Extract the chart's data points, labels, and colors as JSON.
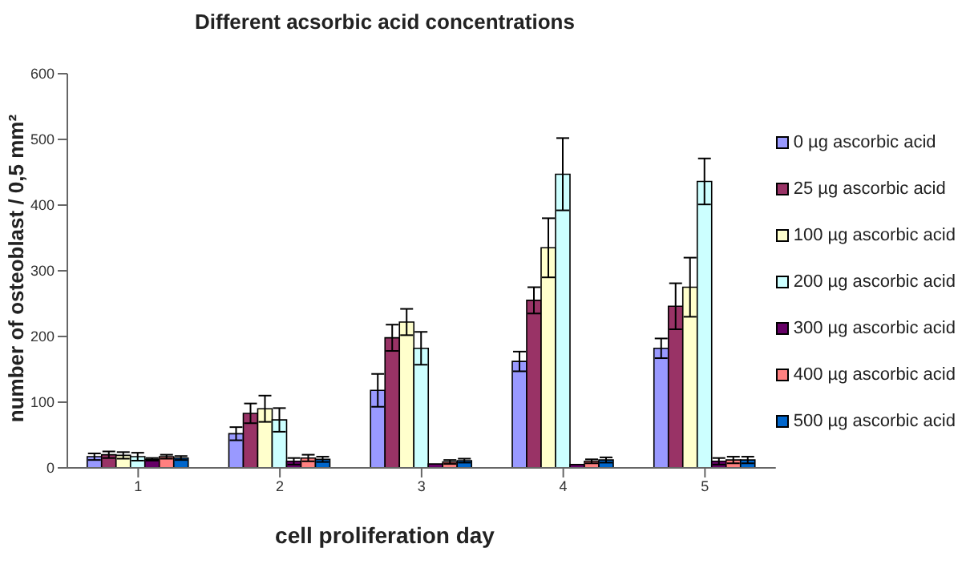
{
  "chart_data": {
    "type": "bar",
    "title": "Different acsorbic acid concentrations",
    "xlabel": "cell proliferation day",
    "ylabel": "number of osteoblast / 0,5 mm²",
    "categories": [
      "1",
      "2",
      "3",
      "4",
      "5"
    ],
    "series": [
      {
        "name": "0 µg ascorbic acid",
        "color": "#9999ff",
        "values": [
          17,
          52,
          118,
          162,
          182
        ],
        "errors": [
          5,
          10,
          25,
          15,
          15
        ]
      },
      {
        "name": "25 µg ascorbic acid",
        "color": "#993366",
        "values": [
          20,
          83,
          198,
          255,
          246
        ],
        "errors": [
          5,
          15,
          20,
          20,
          35
        ]
      },
      {
        "name": "100 µg ascorbic acid",
        "color": "#ffffcc",
        "values": [
          19,
          90,
          222,
          335,
          275
        ],
        "errors": [
          5,
          20,
          20,
          45,
          45
        ]
      },
      {
        "name": "200 µg ascorbic acid",
        "color": "#ccffff",
        "values": [
          17,
          73,
          182,
          447,
          436
        ],
        "errors": [
          6,
          18,
          25,
          55,
          35
        ]
      },
      {
        "name": "300 µg ascorbic acid",
        "color": "#660066",
        "values": [
          13,
          10,
          6,
          5,
          10
        ],
        "errors": [
          2,
          5,
          null,
          null,
          5
        ]
      },
      {
        "name": "400 µg ascorbic acid",
        "color": "#ff8080",
        "values": [
          17,
          15,
          9,
          10,
          12
        ],
        "errors": [
          3,
          5,
          3,
          3,
          5
        ]
      },
      {
        "name": "500 µg ascorbic acid",
        "color": "#0066cc",
        "values": [
          15,
          13,
          11,
          12,
          12
        ],
        "errors": [
          3,
          4,
          3,
          4,
          5
        ]
      }
    ],
    "ylim": [
      0,
      600
    ],
    "yticks": [
      0,
      100,
      200,
      300,
      400,
      500,
      600
    ],
    "grid": false,
    "legend": "right"
  }
}
